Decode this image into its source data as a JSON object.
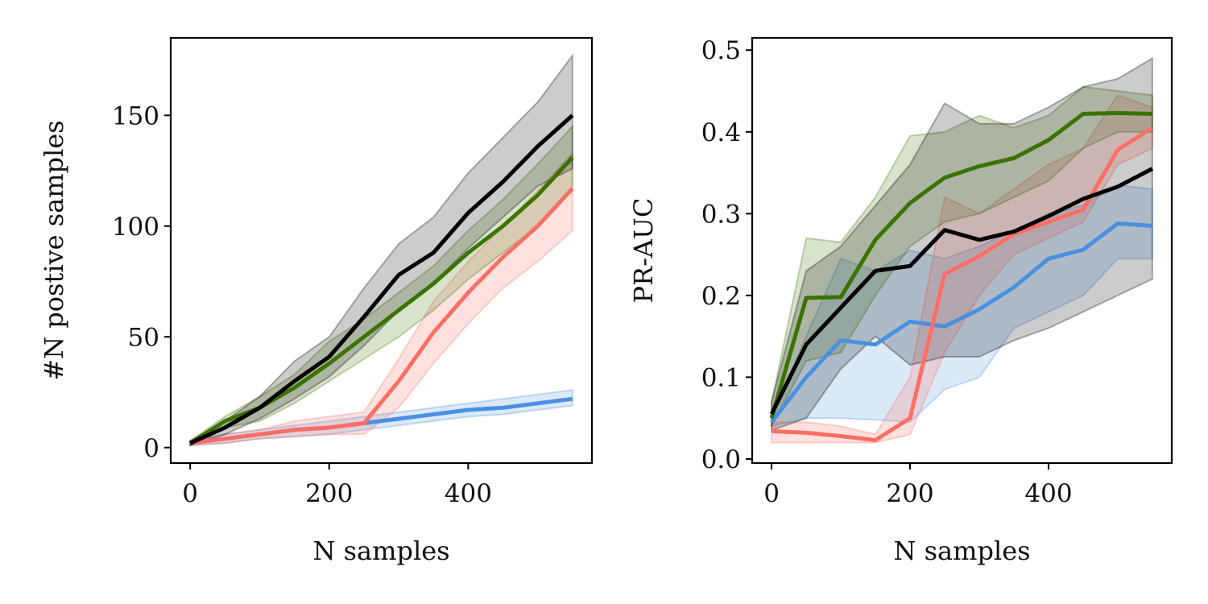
{
  "colors": {
    "black": "#000000",
    "green": "#3a7300",
    "red": "#ff6e64",
    "blue": "#4a90e2"
  },
  "chart_data": [
    {
      "type": "line",
      "xlabel": "N samples",
      "ylabel": "#N postive samples",
      "xlim": [
        -28,
        578
      ],
      "ylim": [
        -7,
        185
      ],
      "xticks": [
        0,
        200,
        400
      ],
      "yticks": [
        0,
        50,
        100,
        150
      ],
      "x": [
        0,
        50,
        100,
        150,
        200,
        250,
        300,
        350,
        400,
        450,
        500,
        550
      ],
      "series": [
        {
          "color": "#4a90e2",
          "values": [
            2,
            4,
            6,
            8,
            9,
            11,
            13,
            15,
            17,
            18,
            20,
            22
          ],
          "lower": [
            1,
            2,
            4,
            5,
            6,
            8,
            10,
            12,
            14,
            15,
            17,
            19
          ],
          "upper": [
            3,
            6,
            8,
            10,
            12,
            14,
            16,
            18,
            20,
            22,
            24,
            26
          ]
        },
        {
          "color": "#ff6e64",
          "values": [
            2,
            4,
            6,
            8,
            9,
            11,
            30,
            52,
            70,
            86,
            100,
            117
          ],
          "lower": [
            1,
            2,
            4,
            5,
            6,
            6,
            18,
            38,
            56,
            72,
            84,
            98
          ],
          "upper": [
            3,
            6,
            8,
            12,
            14,
            16,
            40,
            66,
            84,
            100,
            116,
            133
          ]
        },
        {
          "color": "#3a7300",
          "values": [
            2,
            12,
            18,
            27,
            38,
            50,
            62,
            74,
            88,
            100,
            114,
            131
          ],
          "lower": [
            1,
            9,
            12,
            20,
            30,
            40,
            50,
            62,
            76,
            88,
            100,
            118
          ],
          "upper": [
            3,
            14,
            23,
            33,
            48,
            58,
            70,
            82,
            98,
            112,
            128,
            145
          ]
        },
        {
          "color": "#000000",
          "values": [
            2,
            9,
            18,
            30,
            41,
            59,
            78,
            88,
            106,
            120,
            136,
            150
          ],
          "lower": [
            1,
            6,
            13,
            22,
            32,
            46,
            62,
            74,
            90,
            104,
            118,
            126
          ],
          "upper": [
            3,
            12,
            23,
            39,
            50,
            72,
            92,
            104,
            124,
            140,
            156,
            177
          ]
        }
      ]
    },
    {
      "type": "line",
      "xlabel": "N samples",
      "ylabel": "PR-AUC",
      "xlim": [
        -28,
        578
      ],
      "ylim": [
        -0.005,
        0.515
      ],
      "xticks": [
        0,
        200,
        400
      ],
      "yticks": [
        0.0,
        0.1,
        0.2,
        0.3,
        0.4,
        0.5
      ],
      "ytick_labels": [
        "0.0",
        "0.1",
        "0.2",
        "0.3",
        "0.4",
        "0.5"
      ],
      "x": [
        0,
        50,
        100,
        150,
        200,
        250,
        300,
        350,
        400,
        450,
        500,
        550
      ],
      "series": [
        {
          "color": "#4a90e2",
          "values": [
            0.045,
            0.1,
            0.145,
            0.14,
            0.168,
            0.162,
            0.183,
            0.21,
            0.245,
            0.256,
            0.288,
            0.285
          ],
          "lower": [
            0.04,
            0.05,
            0.05,
            0.048,
            0.045,
            0.085,
            0.1,
            0.16,
            0.18,
            0.2,
            0.245,
            0.245
          ],
          "upper": [
            0.05,
            0.15,
            0.245,
            0.23,
            0.255,
            0.245,
            0.26,
            0.28,
            0.3,
            0.31,
            0.335,
            0.33
          ]
        },
        {
          "color": "#ff6e64",
          "values": [
            0.034,
            0.032,
            0.028,
            0.023,
            0.05,
            0.226,
            0.248,
            0.275,
            0.29,
            0.305,
            0.378,
            0.405
          ],
          "lower": [
            0.02,
            0.02,
            0.02,
            0.02,
            0.03,
            0.13,
            0.2,
            0.25,
            0.27,
            0.29,
            0.36,
            0.38
          ],
          "upper": [
            0.045,
            0.045,
            0.04,
            0.03,
            0.1,
            0.32,
            0.3,
            0.33,
            0.36,
            0.38,
            0.445,
            0.43
          ]
        },
        {
          "color": "#3a7300",
          "values": [
            0.05,
            0.197,
            0.198,
            0.268,
            0.313,
            0.344,
            0.358,
            0.368,
            0.39,
            0.422,
            0.423,
            0.422
          ],
          "lower": [
            0.04,
            0.12,
            0.13,
            0.2,
            0.26,
            0.29,
            0.3,
            0.32,
            0.34,
            0.38,
            0.4,
            0.4
          ],
          "upper": [
            0.07,
            0.27,
            0.265,
            0.32,
            0.395,
            0.4,
            0.42,
            0.405,
            0.42,
            0.455,
            0.45,
            0.445
          ]
        },
        {
          "color": "#000000",
          "values": [
            0.055,
            0.14,
            0.185,
            0.23,
            0.236,
            0.28,
            0.268,
            0.278,
            0.297,
            0.318,
            0.333,
            0.355
          ],
          "lower": [
            0.035,
            0.05,
            0.11,
            0.15,
            0.115,
            0.125,
            0.125,
            0.145,
            0.16,
            0.18,
            0.2,
            0.22
          ],
          "upper": [
            0.07,
            0.23,
            0.26,
            0.31,
            0.36,
            0.435,
            0.41,
            0.41,
            0.43,
            0.455,
            0.465,
            0.49
          ]
        }
      ]
    }
  ]
}
